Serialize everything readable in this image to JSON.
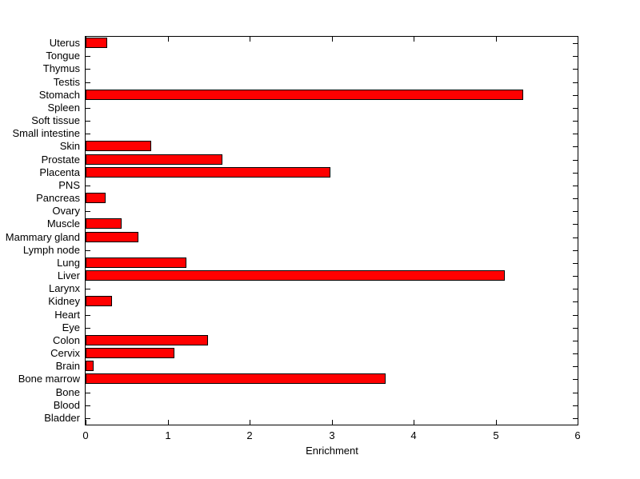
{
  "chart_data": {
    "type": "bar",
    "orientation": "horizontal",
    "title": "",
    "xlabel": "Enrichment",
    "ylabel": "",
    "xlim": [
      0,
      6
    ],
    "xticks": [
      0,
      1,
      2,
      3,
      4,
      5,
      6
    ],
    "grid": false,
    "legend": null,
    "bar_color": "#ff0000",
    "bar_edge_color": "#000000",
    "axis_color": "#000000",
    "background_color": "#ffffff",
    "categories": [
      "Uterus",
      "Tongue",
      "Thymus",
      "Testis",
      "Stomach",
      "Spleen",
      "Soft tissue",
      "Small intestine",
      "Skin",
      "Prostate",
      "Placenta",
      "PNS",
      "Pancreas",
      "Ovary",
      "Muscle",
      "Mammary gland",
      "Lymph node",
      "Lung",
      "Liver",
      "Larynx",
      "Kidney",
      "Heart",
      "Eye",
      "Colon",
      "Cervix",
      "Brain",
      "Bone marrow",
      "Bone",
      "Blood",
      "Bladder"
    ],
    "values": [
      0.24,
      0,
      0,
      0,
      5.32,
      0,
      0,
      0,
      0.78,
      1.65,
      2.97,
      0,
      0.22,
      0,
      0.42,
      0.62,
      0,
      1.21,
      5.09,
      0,
      0.3,
      0,
      0,
      1.47,
      1.06,
      0.08,
      3.64,
      0,
      0,
      0
    ],
    "categories_order_note": "listed top to bottom as displayed"
  }
}
